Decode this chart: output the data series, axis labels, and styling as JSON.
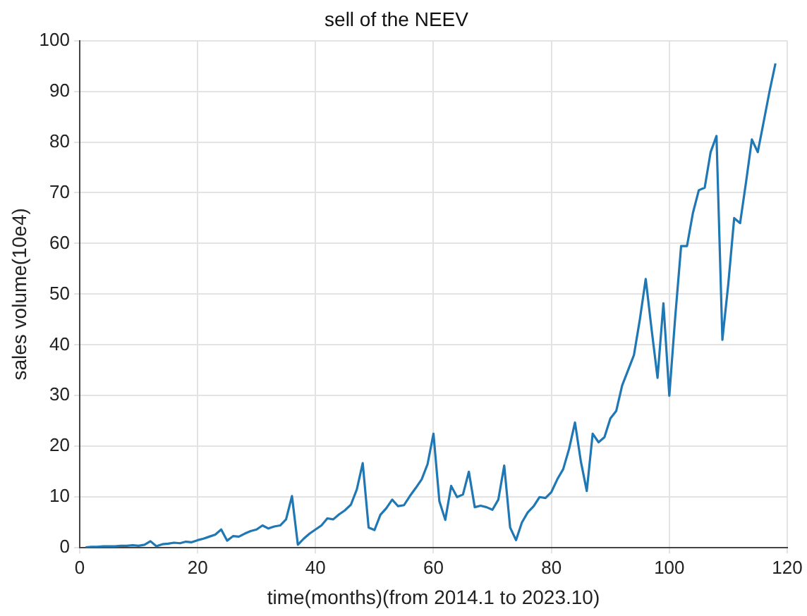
{
  "chart_data": {
    "type": "line",
    "title": "sell of the NEEV",
    "xlabel": "time(months)(from 2014.1 to 2023.10)",
    "ylabel": "sales volume(10e4)",
    "x": [
      1,
      2,
      3,
      4,
      5,
      6,
      7,
      8,
      9,
      10,
      11,
      12,
      13,
      14,
      15,
      16,
      17,
      18,
      19,
      20,
      21,
      22,
      23,
      24,
      25,
      26,
      27,
      28,
      29,
      30,
      31,
      32,
      33,
      34,
      35,
      36,
      37,
      38,
      39,
      40,
      41,
      42,
      43,
      44,
      45,
      46,
      47,
      48,
      49,
      50,
      51,
      52,
      53,
      54,
      55,
      56,
      57,
      58,
      59,
      60,
      61,
      62,
      63,
      64,
      65,
      66,
      67,
      68,
      69,
      70,
      71,
      72,
      73,
      74,
      75,
      76,
      77,
      78,
      79,
      80,
      81,
      82,
      83,
      84,
      85,
      86,
      87,
      88,
      89,
      90,
      91,
      92,
      93,
      94,
      95,
      96,
      97,
      98,
      99,
      100,
      101,
      102,
      103,
      104,
      105,
      106,
      107,
      108,
      109,
      110,
      111,
      112,
      113,
      114,
      115,
      116,
      117,
      118
    ],
    "series": [
      {
        "color": "#1f77b4",
        "values": [
          0.1,
          0.2,
          0.2,
          0.3,
          0.3,
          0.3,
          0.4,
          0.4,
          0.5,
          0.4,
          0.6,
          1.3,
          0.3,
          0.7,
          0.8,
          1.0,
          0.9,
          1.2,
          1.1,
          1.5,
          1.8,
          2.2,
          2.6,
          3.6,
          1.4,
          2.3,
          2.2,
          2.8,
          3.3,
          3.6,
          4.4,
          3.8,
          4.2,
          4.4,
          5.6,
          10.2,
          0.6,
          1.8,
          2.8,
          3.6,
          4.4,
          5.8,
          5.6,
          6.6,
          7.4,
          8.5,
          11.5,
          16.7,
          4.0,
          3.5,
          6.5,
          7.8,
          9.5,
          8.2,
          8.4,
          10.2,
          11.8,
          13.5,
          16.5,
          22.5,
          9.2,
          5.5,
          12.2,
          10.0,
          10.5,
          15.0,
          8.0,
          8.3,
          8.0,
          7.5,
          9.5,
          16.2,
          4.0,
          1.5,
          5.0,
          7.0,
          8.2,
          10.0,
          9.8,
          11.0,
          13.5,
          15.5,
          19.5,
          24.7,
          17.0,
          11.2,
          22.5,
          20.8,
          21.8,
          25.5,
          27.0,
          32.0,
          35.0,
          38.0,
          45.0,
          53.0,
          43.0,
          33.5,
          48.2,
          30.0,
          45.5,
          59.5,
          59.5,
          66.0,
          70.5,
          71.0,
          78.0,
          81.2,
          41.0,
          52.0,
          65.0,
          64.0,
          72.0,
          80.5,
          78.0,
          84.0,
          90.0,
          95.5
        ]
      }
    ],
    "xlim": [
      0,
      120
    ],
    "xticks": [
      0,
      20,
      40,
      60,
      80,
      100,
      120
    ],
    "ylim": [
      0,
      100
    ],
    "yticks": [
      0,
      10,
      20,
      30,
      40,
      50,
      60,
      70,
      80,
      90,
      100
    ],
    "grid": true,
    "legend": false,
    "marker": "none",
    "line_style": "solid"
  }
}
